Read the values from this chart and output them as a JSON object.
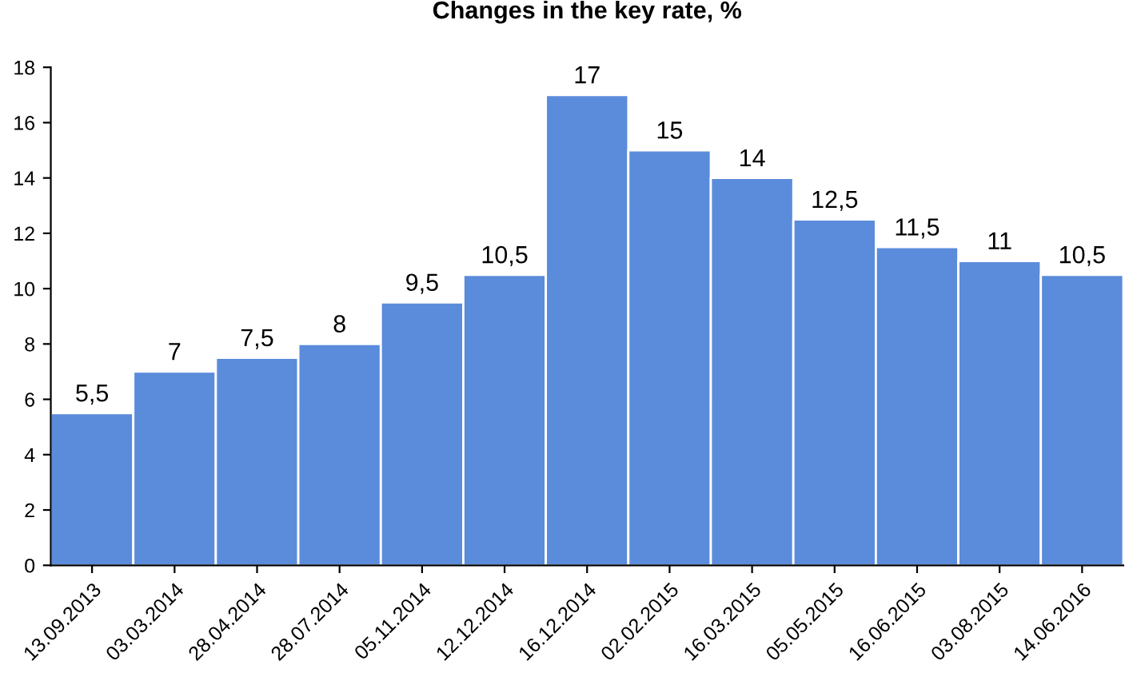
{
  "chart_data": {
    "type": "bar",
    "title": "Changes in the key rate, %",
    "categories": [
      "13.09.2013",
      "03.03.2014",
      "28.04.2014",
      "28.07.2014",
      "05.11.2014",
      "12.12.2014",
      "16.12.2014",
      "02.02.2015",
      "16.03.2015",
      "05.05.2015",
      "16.06.2015",
      "03.08.2015",
      "14.06.2016"
    ],
    "values": [
      5.5,
      7,
      7.5,
      8,
      9.5,
      10.5,
      17,
      15,
      14,
      12.5,
      11.5,
      11,
      10.5
    ],
    "value_labels": [
      "5,5",
      "7",
      "7,5",
      "8",
      "9,5",
      "10,5",
      "17",
      "15",
      "14",
      "12,5",
      "11,5",
      "11",
      "10,5"
    ],
    "color": "#5b8bdb",
    "ylim": [
      0,
      18
    ],
    "yticks": [
      0,
      2,
      4,
      6,
      8,
      10,
      12,
      14,
      16,
      18
    ],
    "grid": false,
    "legend": false
  }
}
